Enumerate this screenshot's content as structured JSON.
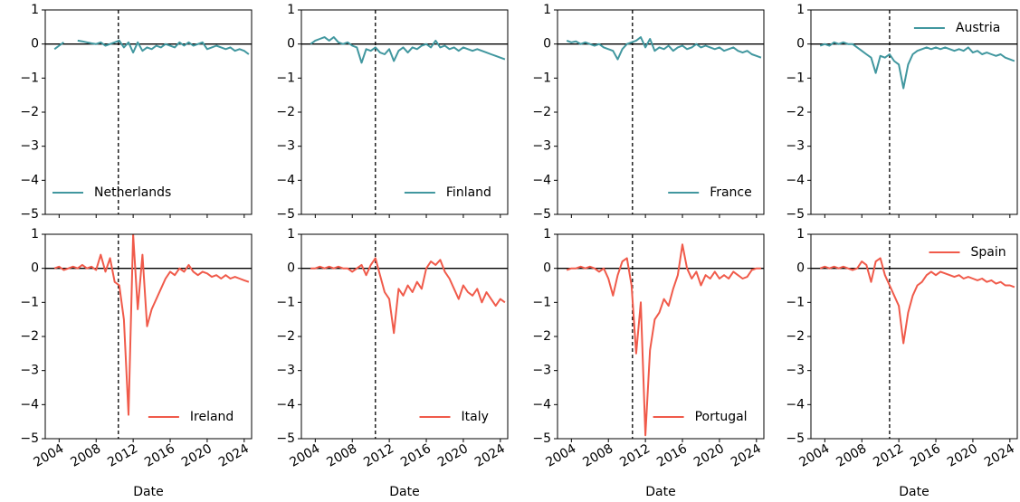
{
  "chart_data": [
    {
      "type": "line",
      "xlim": [
        2002.5,
        2024.8
      ],
      "xticks": [
        2004,
        2008,
        2012,
        2016,
        2020,
        2024
      ],
      "ylim": [
        -5,
        1
      ],
      "yticks": [
        1,
        0,
        {
          "value": -1,
          "label": "−1"
        },
        {
          "value": -2,
          "label": "−2"
        },
        {
          "value": -3,
          "label": "−3"
        },
        {
          "value": -4,
          "label": "−4"
        },
        {
          "value": -5,
          "label": "−5"
        }
      ],
      "hline": 0,
      "vline": 2010.4,
      "legend": "lower left",
      "series": [
        {
          "name": "Netherlands",
          "color": "#41979f",
          "x": [
            2003.5,
            2004,
            2004.5,
            2005,
            2005.5,
            2006,
            2006.5,
            2007,
            2007.5,
            2008,
            2008.5,
            2009,
            2009.5,
            2010,
            2010.5,
            2011,
            2011.5,
            2012,
            2012.5,
            2013,
            2013.5,
            2014,
            2014.5,
            2015,
            2015.5,
            2016,
            2016.5,
            2017,
            2017.5,
            2018,
            2018.5,
            2019,
            2019.5,
            2020,
            2020.5,
            2021,
            2021.5,
            2022,
            2022.5,
            2023,
            2023.5,
            2024,
            2024.5
          ],
          "values": [
            -0.15,
            -0.05,
            0.05,
            null,
            null,
            0.1,
            0.08,
            0.05,
            0.02,
            0.0,
            0.05,
            -0.05,
            0.0,
            0.05,
            0.1,
            -0.1,
            0.05,
            -0.25,
            0.05,
            -0.2,
            -0.1,
            -0.15,
            -0.05,
            -0.1,
            0.0,
            -0.05,
            -0.1,
            0.05,
            -0.05,
            0.05,
            -0.05,
            0.0,
            0.05,
            -0.15,
            -0.1,
            -0.05,
            -0.1,
            -0.15,
            -0.1,
            -0.2,
            -0.15,
            -0.2,
            -0.3
          ]
        }
      ]
    },
    {
      "type": "line",
      "xlim": [
        2002.5,
        2024.8
      ],
      "xticks": [
        2004,
        2008,
        2012,
        2016,
        2020,
        2024
      ],
      "ylim": [
        -5,
        1
      ],
      "yticks": [
        1,
        0,
        {
          "value": -1,
          "label": "−1"
        },
        {
          "value": -2,
          "label": "−2"
        },
        {
          "value": -3,
          "label": "−3"
        },
        {
          "value": -4,
          "label": "−4"
        },
        {
          "value": -5,
          "label": "−5"
        }
      ],
      "hline": 0,
      "vline": 2010.5,
      "legend": "lower right",
      "series": [
        {
          "name": "Finland",
          "color": "#41979f",
          "x": [
            2003.5,
            2004,
            2004.5,
            2005,
            2005.5,
            2006,
            2006.5,
            2007,
            2007.5,
            2008,
            2008.5,
            2009,
            2009.5,
            2010,
            2010.5,
            2011,
            2011.5,
            2012,
            2012.5,
            2013,
            2013.5,
            2014,
            2014.5,
            2015,
            2015.5,
            2016,
            2016.5,
            2017,
            2017.5,
            2018,
            2018.5,
            2019,
            2019.5,
            2020,
            2020.5,
            2021,
            2021.5,
            2022,
            2022.5,
            2023,
            2023.5,
            2024,
            2024.5
          ],
          "values": [
            0.0,
            0.1,
            0.15,
            0.2,
            0.1,
            0.2,
            0.05,
            0.0,
            0.05,
            -0.05,
            -0.1,
            -0.55,
            -0.15,
            -0.2,
            -0.1,
            -0.25,
            -0.3,
            -0.15,
            -0.5,
            -0.2,
            -0.1,
            -0.25,
            -0.1,
            -0.15,
            -0.05,
            0.0,
            -0.1,
            0.1,
            -0.1,
            -0.05,
            -0.15,
            -0.1,
            -0.2,
            -0.1,
            -0.15,
            -0.2,
            -0.15,
            -0.2,
            -0.25,
            -0.3,
            -0.35,
            -0.4,
            -0.45
          ]
        }
      ]
    },
    {
      "type": "line",
      "xlim": [
        2002.5,
        2024.8
      ],
      "xticks": [
        2004,
        2008,
        2012,
        2016,
        2020,
        2024
      ],
      "ylim": [
        -5,
        1
      ],
      "yticks": [
        1,
        0,
        {
          "value": -1,
          "label": "−1"
        },
        {
          "value": -2,
          "label": "−2"
        },
        {
          "value": -3,
          "label": "−3"
        },
        {
          "value": -4,
          "label": "−4"
        },
        {
          "value": -5,
          "label": "−5"
        }
      ],
      "hline": 0,
      "vline": 2010.6,
      "legend": "lower right",
      "series": [
        {
          "name": "France",
          "color": "#41979f",
          "x": [
            2003.5,
            2004,
            2004.5,
            2005,
            2005.5,
            2006,
            2006.5,
            2007,
            2007.5,
            2008,
            2008.5,
            2009,
            2009.5,
            2010,
            2010.5,
            2011,
            2011.5,
            2012,
            2012.5,
            2013,
            2013.5,
            2014,
            2014.5,
            2015,
            2015.5,
            2016,
            2016.5,
            2017,
            2017.5,
            2018,
            2018.5,
            2019,
            2019.5,
            2020,
            2020.5,
            2021,
            2021.5,
            2022,
            2022.5,
            2023,
            2023.5,
            2024,
            2024.5
          ],
          "values": [
            0.1,
            0.05,
            0.08,
            0.0,
            0.05,
            0.0,
            -0.05,
            0.0,
            -0.1,
            -0.15,
            -0.2,
            -0.45,
            -0.15,
            0.0,
            0.05,
            0.1,
            0.2,
            -0.1,
            0.15,
            -0.2,
            -0.1,
            -0.15,
            -0.05,
            -0.2,
            -0.1,
            -0.05,
            -0.15,
            -0.1,
            0.0,
            -0.1,
            -0.05,
            -0.1,
            -0.15,
            -0.1,
            -0.2,
            -0.15,
            -0.1,
            -0.2,
            -0.25,
            -0.2,
            -0.3,
            -0.35,
            -0.4
          ]
        }
      ]
    },
    {
      "type": "line",
      "xlim": [
        2002.5,
        2024.8
      ],
      "xticks": [
        2004,
        2008,
        2012,
        2016,
        2020,
        2024
      ],
      "ylim": [
        -5,
        1
      ],
      "yticks": [
        1,
        0,
        {
          "value": -1,
          "label": "−1"
        },
        {
          "value": -2,
          "label": "−2"
        },
        {
          "value": -3,
          "label": "−3"
        },
        {
          "value": -4,
          "label": "−4"
        },
        {
          "value": -5,
          "label": "−5"
        }
      ],
      "hline": 0,
      "vline": 2011,
      "legend": "upper right",
      "series": [
        {
          "name": "Austria",
          "color": "#41979f",
          "x": [
            2003.5,
            2004,
            2004.5,
            2005,
            2005.5,
            2006,
            2006.5,
            2007,
            2007.5,
            2008,
            2008.5,
            2009,
            2009.5,
            2010,
            2010.5,
            2011,
            2011.5,
            2012,
            2012.5,
            2013,
            2013.5,
            2014,
            2014.5,
            2015,
            2015.5,
            2016,
            2016.5,
            2017,
            2017.5,
            2018,
            2018.5,
            2019,
            2019.5,
            2020,
            2020.5,
            2021,
            2021.5,
            2022,
            2022.5,
            2023,
            2023.5,
            2024,
            2024.5
          ],
          "values": [
            -0.05,
            0.0,
            -0.05,
            0.05,
            0.0,
            0.05,
            0.0,
            0.0,
            -0.1,
            -0.2,
            -0.3,
            -0.4,
            -0.85,
            -0.35,
            -0.4,
            -0.3,
            -0.5,
            -0.6,
            -1.3,
            -0.6,
            -0.3,
            -0.2,
            -0.15,
            -0.1,
            -0.15,
            -0.1,
            -0.15,
            -0.1,
            -0.15,
            -0.2,
            -0.15,
            -0.2,
            -0.1,
            -0.25,
            -0.2,
            -0.3,
            -0.25,
            -0.3,
            -0.35,
            -0.3,
            -0.4,
            -0.45,
            -0.5
          ]
        }
      ]
    },
    {
      "type": "line",
      "xlim": [
        2002.5,
        2024.8
      ],
      "xticks": [
        2004,
        2008,
        2012,
        2016,
        2020,
        2024
      ],
      "ylim": [
        -5,
        1
      ],
      "yticks": [
        1,
        0,
        {
          "value": -1,
          "label": "−1"
        },
        {
          "value": -2,
          "label": "−2"
        },
        {
          "value": -3,
          "label": "−3"
        },
        {
          "value": -4,
          "label": "−4"
        },
        {
          "value": -5,
          "label": "−5"
        }
      ],
      "hline": 0,
      "vline": 2010.4,
      "legend": "lower right",
      "xlabel": "Date",
      "series": [
        {
          "name": "Ireland",
          "color": "#f05a4a",
          "x": [
            2003.5,
            2004,
            2004.5,
            2005,
            2005.5,
            2006,
            2006.5,
            2007,
            2007.5,
            2008,
            2008.5,
            2009,
            2009.5,
            2010,
            2010.5,
            2011,
            2011.5,
            2012,
            2012.5,
            2013,
            2013.5,
            2014,
            2014.5,
            2015,
            2015.5,
            2016,
            2016.5,
            2017,
            2017.5,
            2018,
            2018.5,
            2019,
            2019.5,
            2020,
            2020.5,
            2021,
            2021.5,
            2022,
            2022.5,
            2023,
            2023.5,
            2024,
            2024.5
          ],
          "values": [
            0.0,
            0.05,
            -0.05,
            0.0,
            0.05,
            0.0,
            0.1,
            0.0,
            0.05,
            -0.05,
            0.4,
            -0.1,
            0.3,
            -0.4,
            -0.5,
            -1.5,
            -4.3,
            1.0,
            -1.2,
            0.4,
            -1.7,
            -1.2,
            -0.9,
            -0.6,
            -0.3,
            -0.1,
            -0.2,
            0.0,
            -0.1,
            0.1,
            -0.1,
            -0.2,
            -0.1,
            -0.15,
            -0.25,
            -0.2,
            -0.3,
            -0.2,
            -0.3,
            -0.25,
            -0.3,
            -0.35,
            -0.4
          ]
        }
      ]
    },
    {
      "type": "line",
      "xlim": [
        2002.5,
        2024.8
      ],
      "xticks": [
        2004,
        2008,
        2012,
        2016,
        2020,
        2024
      ],
      "ylim": [
        -5,
        1
      ],
      "yticks": [
        1,
        0,
        {
          "value": -1,
          "label": "−1"
        },
        {
          "value": -2,
          "label": "−2"
        },
        {
          "value": -3,
          "label": "−3"
        },
        {
          "value": -4,
          "label": "−4"
        },
        {
          "value": -5,
          "label": "−5"
        }
      ],
      "hline": 0,
      "vline": 2010.5,
      "legend": "lower right",
      "xlabel": "Date",
      "series": [
        {
          "name": "Italy",
          "color": "#f05a4a",
          "x": [
            2003.5,
            2004,
            2004.5,
            2005,
            2005.5,
            2006,
            2006.5,
            2007,
            2007.5,
            2008,
            2008.5,
            2009,
            2009.5,
            2010,
            2010.5,
            2011,
            2011.5,
            2012,
            2012.5,
            2013,
            2013.5,
            2014,
            2014.5,
            2015,
            2015.5,
            2016,
            2016.5,
            2017,
            2017.5,
            2018,
            2018.5,
            2019,
            2019.5,
            2020,
            2020.5,
            2021,
            2021.5,
            2022,
            2022.5,
            2023,
            2023.5,
            2024,
            2024.5
          ],
          "values": [
            0.0,
            0.0,
            0.05,
            0.0,
            0.05,
            0.0,
            0.05,
            0.0,
            0.0,
            -0.1,
            0.0,
            0.1,
            -0.2,
            0.1,
            0.3,
            -0.2,
            -0.7,
            -0.9,
            -1.9,
            -0.6,
            -0.8,
            -0.5,
            -0.7,
            -0.4,
            -0.6,
            0.0,
            0.2,
            0.1,
            0.25,
            -0.1,
            -0.3,
            -0.6,
            -0.9,
            -0.5,
            -0.7,
            -0.8,
            -0.6,
            -1.0,
            -0.7,
            -0.9,
            -1.1,
            -0.9,
            -1.0
          ]
        }
      ]
    },
    {
      "type": "line",
      "xlim": [
        2002.5,
        2024.8
      ],
      "xticks": [
        2004,
        2008,
        2012,
        2016,
        2020,
        2024
      ],
      "ylim": [
        -5,
        1
      ],
      "yticks": [
        1,
        0,
        {
          "value": -1,
          "label": "−1"
        },
        {
          "value": -2,
          "label": "−2"
        },
        {
          "value": -3,
          "label": "−3"
        },
        {
          "value": -4,
          "label": "−4"
        },
        {
          "value": -5,
          "label": "−5"
        }
      ],
      "hline": 0,
      "vline": 2010.6,
      "legend": "lower right",
      "xlabel": "Date",
      "series": [
        {
          "name": "Portugal",
          "color": "#f05a4a",
          "x": [
            2003.5,
            2004,
            2004.5,
            2005,
            2005.5,
            2006,
            2006.5,
            2007,
            2007.5,
            2008,
            2008.5,
            2009,
            2009.5,
            2010,
            2010.5,
            2011,
            2011.5,
            2012,
            2012.5,
            2013,
            2013.5,
            2014,
            2014.5,
            2015,
            2015.5,
            2016,
            2016.5,
            2017,
            2017.5,
            2018,
            2018.5,
            2019,
            2019.5,
            2020,
            2020.5,
            2021,
            2021.5,
            2022,
            2022.5,
            2023,
            2023.5,
            2024,
            2024.5
          ],
          "values": [
            -0.05,
            0.0,
            0.0,
            0.05,
            0.0,
            0.05,
            0.0,
            -0.1,
            0.0,
            -0.3,
            -0.8,
            -0.2,
            0.2,
            0.3,
            -0.5,
            -2.5,
            -1.0,
            -4.9,
            -2.4,
            -1.5,
            -1.3,
            -0.9,
            -1.1,
            -0.6,
            -0.2,
            0.7,
            0.0,
            -0.3,
            -0.1,
            -0.5,
            -0.2,
            -0.3,
            -0.1,
            -0.3,
            -0.2,
            -0.3,
            -0.1,
            -0.2,
            -0.3,
            -0.25,
            -0.05,
            0.0,
            0.0
          ]
        }
      ]
    },
    {
      "type": "line",
      "xlim": [
        2002.5,
        2024.8
      ],
      "xticks": [
        2004,
        2008,
        2012,
        2016,
        2020,
        2024
      ],
      "ylim": [
        -5,
        1
      ],
      "yticks": [
        1,
        0,
        {
          "value": -1,
          "label": "−1"
        },
        {
          "value": -2,
          "label": "−2"
        },
        {
          "value": -3,
          "label": "−3"
        },
        {
          "value": -4,
          "label": "−4"
        },
        {
          "value": -5,
          "label": "−5"
        }
      ],
      "hline": 0,
      "vline": 2011,
      "legend": "upper right",
      "xlabel": "Date",
      "series": [
        {
          "name": "Spain",
          "color": "#f05a4a",
          "x": [
            2003.5,
            2004,
            2004.5,
            2005,
            2005.5,
            2006,
            2006.5,
            2007,
            2007.5,
            2008,
            2008.5,
            2009,
            2009.5,
            2010,
            2010.5,
            2011,
            2011.5,
            2012,
            2012.5,
            2013,
            2013.5,
            2014,
            2014.5,
            2015,
            2015.5,
            2016,
            2016.5,
            2017,
            2017.5,
            2018,
            2018.5,
            2019,
            2019.5,
            2020,
            2020.5,
            2021,
            2021.5,
            2022,
            2022.5,
            2023,
            2023.5,
            2024,
            2024.5
          ],
          "values": [
            0.0,
            0.05,
            0.0,
            0.05,
            0.0,
            0.05,
            0.0,
            -0.05,
            0.0,
            0.2,
            0.1,
            -0.4,
            0.2,
            0.3,
            -0.2,
            -0.5,
            -0.8,
            -1.1,
            -2.2,
            -1.3,
            -0.8,
            -0.5,
            -0.4,
            -0.2,
            -0.1,
            -0.2,
            -0.1,
            -0.15,
            -0.2,
            -0.25,
            -0.2,
            -0.3,
            -0.25,
            -0.3,
            -0.35,
            -0.3,
            -0.4,
            -0.35,
            -0.45,
            -0.4,
            -0.5,
            -0.5,
            -0.55
          ]
        }
      ]
    }
  ]
}
